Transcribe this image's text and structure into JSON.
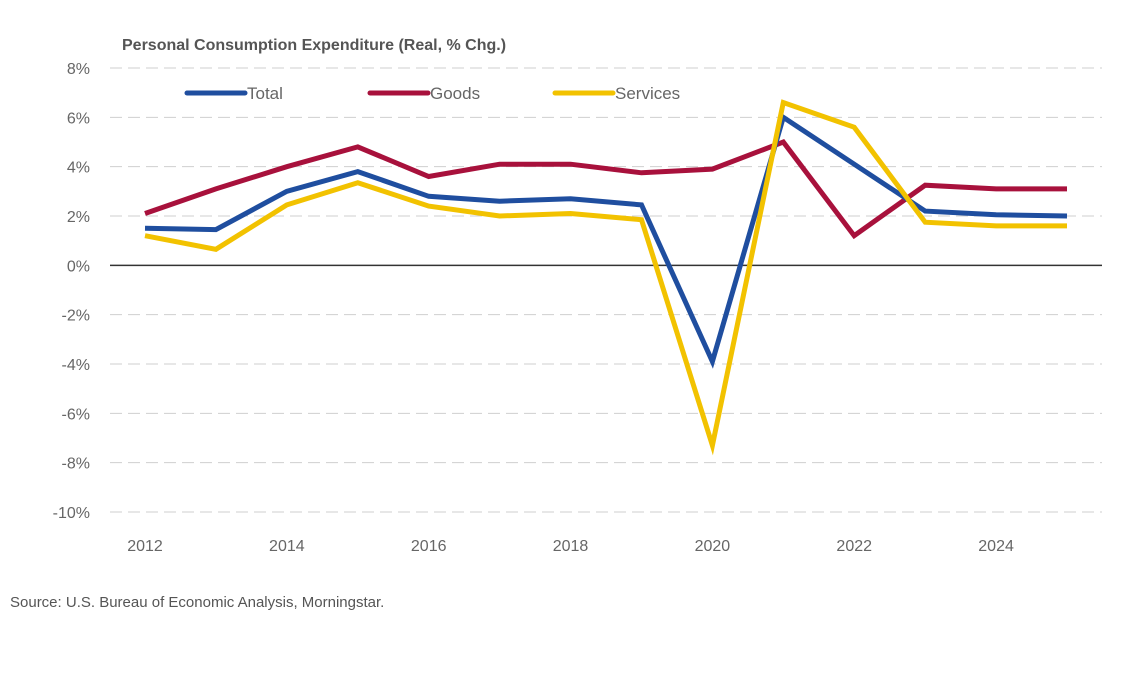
{
  "chart_data": {
    "type": "line",
    "title": "Personal Consumption Expenditure (Real, % Chg.)",
    "xlabel": "",
    "ylabel": "",
    "x": [
      2012,
      2013,
      2014,
      2015,
      2016,
      2017,
      2018,
      2019,
      2020,
      2021,
      2022,
      2023,
      2024,
      2025
    ],
    "x_tick_labels": [
      "2012",
      "2014",
      "2016",
      "2018",
      "2020",
      "2022",
      "2024"
    ],
    "x_ticks": [
      2012,
      2014,
      2016,
      2018,
      2020,
      2022,
      2024
    ],
    "ylim": [
      -10,
      8
    ],
    "y_ticks": [
      8,
      6,
      4,
      2,
      0,
      -2,
      -4,
      -6,
      -8,
      -10
    ],
    "y_tick_labels": [
      "8%",
      "6%",
      "4%",
      "2%",
      "0%",
      "-2%",
      "-4%",
      "-6%",
      "-8%",
      "-10%"
    ],
    "grid": "horizontal-dashed",
    "legend_position": "top",
    "series": [
      {
        "name": "Total",
        "color": "#1f4e9f",
        "values": [
          1.5,
          1.45,
          3.0,
          3.8,
          2.8,
          2.6,
          2.7,
          2.45,
          -3.9,
          6.0,
          4.1,
          2.2,
          2.05,
          2.0
        ]
      },
      {
        "name": "Goods",
        "color": "#a8113c",
        "values": [
          2.1,
          3.1,
          4.0,
          4.8,
          3.6,
          4.1,
          4.1,
          3.75,
          3.9,
          5.0,
          1.2,
          3.25,
          3.1,
          3.1
        ]
      },
      {
        "name": "Services",
        "color": "#f2c200",
        "values": [
          1.2,
          0.65,
          2.45,
          3.35,
          2.4,
          2.0,
          2.1,
          1.85,
          -7.3,
          6.6,
          5.6,
          1.75,
          1.6,
          1.6
        ]
      }
    ]
  },
  "source_text": "Source: U.S. Bureau of Economic Analysis, Morningstar."
}
